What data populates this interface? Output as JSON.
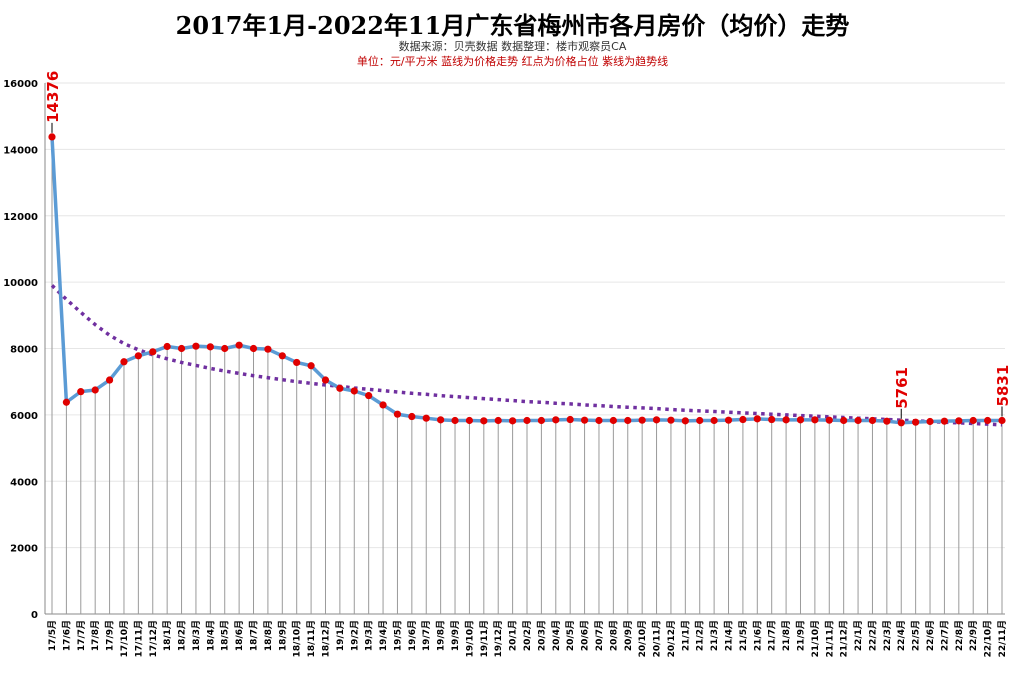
{
  "chart_data": {
    "type": "line",
    "title": "2017年1月-2022年11月广东省梅州市各月房价（均价）走势",
    "subtitle": "数据来源：贝壳数据  数据整理：楼市观察员CA",
    "note": "单位：元/平方米    蓝线为价格走势      红点为价格占位      紫线为趋势线",
    "ylim": [
      0,
      16000
    ],
    "yticks": [
      0,
      2000,
      4000,
      6000,
      8000,
      10000,
      12000,
      14000,
      16000
    ],
    "grid": true,
    "categories": [
      "17/5月",
      "17/6月",
      "17/7月",
      "17/8月",
      "17/9月",
      "17/10月",
      "17/11月",
      "17/12月",
      "18/1月",
      "18/2月",
      "18/3月",
      "18/4月",
      "18/5月",
      "18/6月",
      "18/7月",
      "18/8月",
      "18/9月",
      "18/10月",
      "18/11月",
      "18/12月",
      "19/1月",
      "19/2月",
      "19/3月",
      "19/4月",
      "19/5月",
      "19/6月",
      "19/7月",
      "19/8月",
      "19/9月",
      "19/10月",
      "19/11月",
      "19/12月",
      "20/1月",
      "20/2月",
      "20/3月",
      "20/4月",
      "20/5月",
      "20/6月",
      "20/7月",
      "20/8月",
      "20/9月",
      "20/10月",
      "20/11月",
      "20/12月",
      "21/1月",
      "21/2月",
      "21/3月",
      "21/4月",
      "21/5月",
      "21/6月",
      "21/7月",
      "21/8月",
      "21/9月",
      "21/10月",
      "21/11月",
      "21/12月",
      "22/1月",
      "22/2月",
      "22/3月",
      "22/4月",
      "22/5月",
      "22/6月",
      "22/7月",
      "22/8月",
      "22/9月",
      "22/10月",
      "22/11月"
    ],
    "series": [
      {
        "name": "蓝线为价格走势",
        "color": "#5b9bd5",
        "marker_color": "#e00000",
        "values": [
          14376,
          6380,
          6700,
          6750,
          7050,
          7600,
          7780,
          7900,
          8060,
          8000,
          8070,
          8050,
          8000,
          8100,
          8000,
          7980,
          7780,
          7580,
          7480,
          7050,
          6800,
          6720,
          6580,
          6300,
          6020,
          5950,
          5900,
          5850,
          5830,
          5830,
          5820,
          5830,
          5820,
          5830,
          5830,
          5850,
          5860,
          5840,
          5830,
          5830,
          5830,
          5840,
          5850,
          5840,
          5820,
          5830,
          5830,
          5840,
          5860,
          5880,
          5860,
          5850,
          5850,
          5850,
          5840,
          5830,
          5830,
          5830,
          5810,
          5761,
          5780,
          5800,
          5810,
          5820,
          5830,
          5830,
          5831
        ]
      },
      {
        "name": "紫线为趋势线",
        "color": "#7030a0",
        "style": "dotted",
        "values": [
          9900,
          9480,
          9090,
          8720,
          8400,
          8150,
          7960,
          7810,
          7690,
          7580,
          7490,
          7400,
          7320,
          7250,
          7180,
          7120,
          7060,
          7000,
          6950,
          6900,
          6860,
          6810,
          6770,
          6730,
          6690,
          6650,
          6620,
          6580,
          6550,
          6520,
          6490,
          6460,
          6430,
          6400,
          6380,
          6350,
          6330,
          6300,
          6280,
          6250,
          6230,
          6210,
          6190,
          6160,
          6140,
          6120,
          6100,
          6080,
          6060,
          6040,
          6020,
          6000,
          5980,
          5960,
          5940,
          5920,
          5900,
          5880,
          5860,
          5840,
          5820,
          5800,
          5780,
          5760,
          5740,
          5720,
          5700
        ]
      }
    ],
    "annotations": [
      {
        "label": "14376",
        "index": 0
      },
      {
        "label": "5761",
        "index": 59
      },
      {
        "label": "5831",
        "index": 66
      }
    ]
  }
}
